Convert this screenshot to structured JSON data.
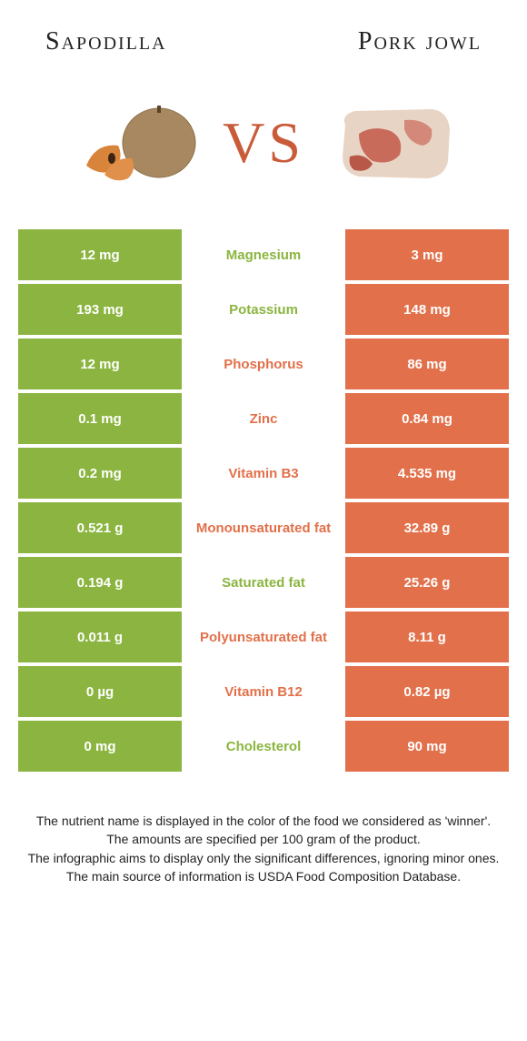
{
  "colors": {
    "left": "#8bb540",
    "right": "#e2704a",
    "left_text": "#8bb540",
    "right_text": "#e2704a",
    "vs": "#c95b38"
  },
  "header": {
    "left_title": "Sapodilla",
    "right_title": "Pork jowl",
    "vs": "VS"
  },
  "rows": [
    {
      "name": "Magnesium",
      "left": "12 mg",
      "right": "3 mg",
      "winner": "left"
    },
    {
      "name": "Potassium",
      "left": "193 mg",
      "right": "148 mg",
      "winner": "left"
    },
    {
      "name": "Phosphorus",
      "left": "12 mg",
      "right": "86 mg",
      "winner": "right"
    },
    {
      "name": "Zinc",
      "left": "0.1 mg",
      "right": "0.84 mg",
      "winner": "right"
    },
    {
      "name": "Vitamin B3",
      "left": "0.2 mg",
      "right": "4.535 mg",
      "winner": "right"
    },
    {
      "name": "Monounsaturated fat",
      "left": "0.521 g",
      "right": "32.89 g",
      "winner": "right"
    },
    {
      "name": "Saturated fat",
      "left": "0.194 g",
      "right": "25.26 g",
      "winner": "left"
    },
    {
      "name": "Polyunsaturated fat",
      "left": "0.011 g",
      "right": "8.11 g",
      "winner": "right"
    },
    {
      "name": "Vitamin B12",
      "left": "0 µg",
      "right": "0.82 µg",
      "winner": "right"
    },
    {
      "name": "Cholesterol",
      "left": "0 mg",
      "right": "90 mg",
      "winner": "left"
    }
  ],
  "footer": {
    "line1": "The nutrient name is displayed in the color of the food we considered as 'winner'.",
    "line2": "The amounts are specified per 100 gram of the product.",
    "line3": "The infographic aims to display only the significant differences, ignoring minor ones.",
    "line4": "The main source of information is USDA Food Composition Database."
  }
}
